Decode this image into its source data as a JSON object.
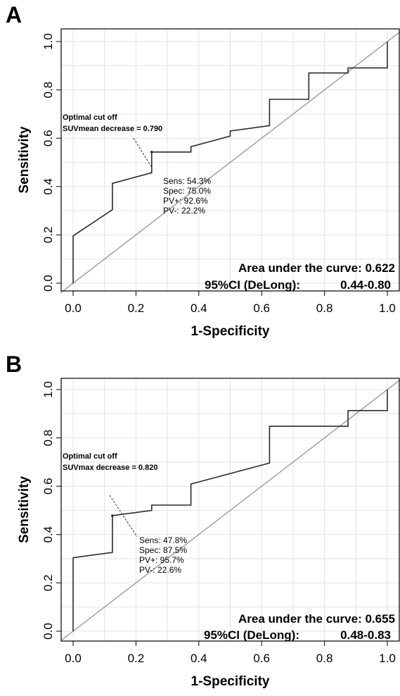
{
  "chart_data": [
    {
      "type": "line",
      "panel": "A",
      "xlabel": "1-Specificity",
      "ylabel": "Sensitivity",
      "xlim": [
        0,
        1
      ],
      "ylim": [
        0,
        1
      ],
      "x_ticks": [
        "0.0",
        "0.2",
        "0.4",
        "0.6",
        "0.8",
        "1.0"
      ],
      "y_ticks": [
        "0.0",
        "0.2",
        "0.4",
        "0.6",
        "0.8",
        "1.0"
      ],
      "grid": true,
      "series": [
        {
          "x": [
            0,
            0,
            0.125,
            0.125,
            0.25,
            0.25,
            0.375,
            0.375,
            0.5,
            0.5,
            0.625,
            0.625,
            0.75,
            0.75,
            0.875,
            0.875,
            1,
            1
          ],
          "y": [
            0,
            0.196,
            0.304,
            0.413,
            0.457,
            0.543,
            0.543,
            0.565,
            0.609,
            0.63,
            0.652,
            0.761,
            0.761,
            0.87,
            0.87,
            0.891,
            0.891,
            1
          ]
        }
      ],
      "reference_line": [
        [
          0,
          0
        ],
        [
          1,
          1
        ]
      ],
      "annotations": {
        "cutoff_title": "Optimal cut off",
        "cutoff_value": "SUVmean decrease = 0.790",
        "cutoff_point": [
          0.25,
          0.543
        ],
        "sens": "Sens: 54.3%",
        "spec": "Spec: 75.0%",
        "ppv": "PV+: 92.6%",
        "npv": "PV-: 22.2%",
        "auc": "Area under the curve: 0.622",
        "ci_label": "95%CI (DeLong):",
        "ci_value": "0.44-0.80"
      }
    },
    {
      "type": "line",
      "panel": "B",
      "xlabel": "1-Specificity",
      "ylabel": "Sensitivity",
      "xlim": [
        0,
        1
      ],
      "ylim": [
        0,
        1
      ],
      "x_ticks": [
        "0.0",
        "0.2",
        "0.4",
        "0.6",
        "0.8",
        "1.0"
      ],
      "y_ticks": [
        "0.0",
        "0.2",
        "0.4",
        "0.6",
        "0.8",
        "1.0"
      ],
      "grid": true,
      "series": [
        {
          "x": [
            0,
            0,
            0.125,
            0.125,
            0.25,
            0.25,
            0.375,
            0.375,
            0.625,
            0.625,
            0.875,
            0.875,
            1,
            1
          ],
          "y": [
            0,
            0.304,
            0.326,
            0.478,
            0.5,
            0.522,
            0.522,
            0.609,
            0.696,
            0.848,
            0.848,
            0.913,
            0.913,
            1
          ]
        }
      ],
      "reference_line": [
        [
          0,
          0
        ],
        [
          1,
          1
        ]
      ],
      "annotations": {
        "cutoff_title": "Optimal cut off",
        "cutoff_value": "SUVmax decrease = 0.820",
        "cutoff_point": [
          0.125,
          0.478
        ],
        "sens": "Sens: 47.8%",
        "spec": "Spec: 87.5%",
        "ppv": "PV+: 95.7%",
        "npv": "PV-: 22.6%",
        "auc": "Area under the curve: 0.655",
        "ci_label": "95%CI (DeLong):",
        "ci_value": "0.48-0.83"
      }
    }
  ],
  "colors": {
    "curve": "#2b2b2b",
    "reference": "#9a9a9a",
    "grid": "#e3e3e3",
    "frame": "#000000"
  }
}
